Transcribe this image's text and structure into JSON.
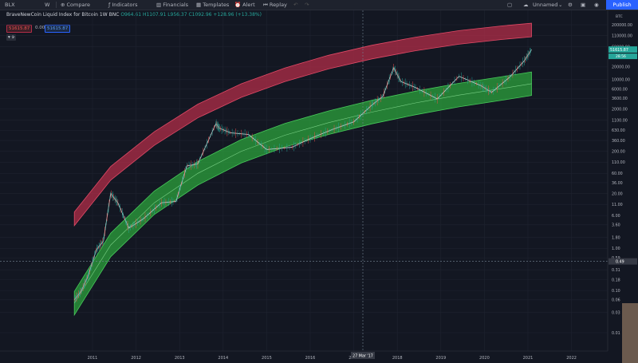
{
  "toolbar": {
    "symbol": "BLX",
    "interval": "W",
    "compare": "Compare",
    "indicators": "Indicators",
    "financials": "Financials",
    "templates": "Templates",
    "alert": "Alert",
    "replay": "Replay",
    "layout_name": "Unnamed",
    "publish": "Publish"
  },
  "legend": {
    "title": "BraveNewCoin Liquid Index for Bitcoin",
    "interval": "1W",
    "exchange": "BNC",
    "open": "O964.61",
    "high": "H1107.91",
    "low": "L956.37",
    "close": "C1092.96",
    "change": "+128.96 (+13.38%)",
    "box_red": "51615.87",
    "box_mid": "0.00",
    "box_blue": "51615.87",
    "indicator_count": "9"
  },
  "price_axis": {
    "currency": "BTC",
    "ticks": [
      "200000.00",
      "110000.00",
      "60000.00",
      "20000.00",
      "10000.00",
      "6000.00",
      "3600.00",
      "2000.00",
      "1100.00",
      "630.00",
      "360.00",
      "200.00",
      "110.00",
      "60.00",
      "36.00",
      "20.00",
      "11.00",
      "6.00",
      "3.60",
      "1.80",
      "1.00",
      "0.59",
      "0.31",
      "0.18",
      "0.10",
      "0.06",
      "0.03",
      "0.01"
    ],
    "last_price": "51615.87",
    "last_price_sub": "28.56",
    "cursor_value": "0.49"
  },
  "time_axis": {
    "ticks": [
      "2011",
      "2012",
      "2013",
      "2014",
      "2015",
      "2016",
      "2017",
      "2018",
      "2019",
      "2020",
      "2021",
      "2022"
    ],
    "cursor_date": "27 Mar '17"
  },
  "chart_data": {
    "type": "line",
    "title": "BraveNewCoin Liquid Index for Bitcoin",
    "scale": "log",
    "ylim": [
      0.01,
      200000
    ],
    "xlim": [
      "2010-06",
      "2022-06"
    ],
    "series": [
      {
        "name": "BLX",
        "x": [
          "2010-08",
          "2010-10",
          "2010-12",
          "2011-02",
          "2011-04",
          "2011-06",
          "2011-08",
          "2011-11",
          "2012-03",
          "2012-08",
          "2012-12",
          "2013-03",
          "2013-06",
          "2013-11",
          "2013-12",
          "2014-03",
          "2014-08",
          "2015-01",
          "2015-08",
          "2016-01",
          "2016-07",
          "2017-01",
          "2017-06",
          "2017-09",
          "2017-12",
          "2018-02",
          "2018-06",
          "2018-12",
          "2019-06",
          "2019-12",
          "2020-03",
          "2020-08",
          "2020-12",
          "2021-02"
        ],
        "y": [
          0.06,
          0.1,
          0.25,
          0.9,
          1.5,
          20,
          12,
          3,
          5,
          12,
          13,
          90,
          100,
          900,
          700,
          550,
          500,
          220,
          250,
          400,
          650,
          1000,
          2500,
          4000,
          19000,
          9000,
          6500,
          3500,
          12000,
          7200,
          5000,
          11500,
          28000,
          51615
        ]
      },
      {
        "name": "Upper band",
        "x": [
          "2010-08",
          "2011-06",
          "2012-06",
          "2013-06",
          "2014-06",
          "2015-06",
          "2016-06",
          "2017-06",
          "2018-06",
          "2019-06",
          "2020-06",
          "2021-02"
        ],
        "y": [
          5,
          60,
          400,
          1800,
          5500,
          13000,
          26000,
          45000,
          70000,
          100000,
          130000,
          150000
        ]
      },
      {
        "name": "Lower band",
        "x": [
          "2010-08",
          "2011-06",
          "2012-06",
          "2013-06",
          "2014-06",
          "2015-06",
          "2016-06",
          "2017-06",
          "2018-06",
          "2019-06",
          "2020-06",
          "2021-02"
        ],
        "y": [
          0.05,
          1.2,
          12,
          60,
          200,
          480,
          950,
          1700,
          2800,
          4300,
          6200,
          8000
        ]
      }
    ]
  },
  "colors": {
    "background": "#131722",
    "upper_band": "#b22d48",
    "lower_band": "#2ca33c",
    "price_line": "#c9c9c9",
    "accent": "#2962ff"
  }
}
